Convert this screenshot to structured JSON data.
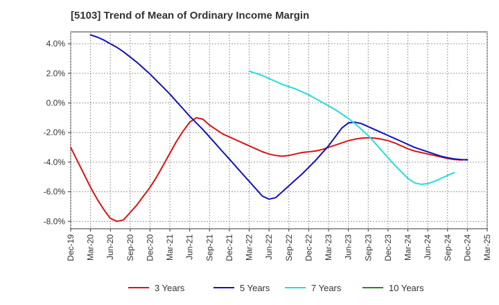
{
  "chart_data": {
    "type": "line",
    "title": "[5103]  Trend of Mean of Ordinary Income Margin",
    "xlabel": "",
    "ylabel": "",
    "x_ticks": [
      "Dec-19",
      "Mar-20",
      "Jun-20",
      "Sep-20",
      "Dec-20",
      "Mar-21",
      "Jun-21",
      "Sep-21",
      "Dec-21",
      "Mar-22",
      "Jun-22",
      "Sep-22",
      "Dec-22",
      "Mar-23",
      "Jun-23",
      "Sep-23",
      "Dec-23",
      "Mar-24",
      "Jun-24",
      "Sep-24",
      "Dec-24",
      "Mar-25"
    ],
    "y_ticks": [
      4.0,
      2.0,
      0.0,
      -2.0,
      -4.0,
      -6.0,
      -8.0
    ],
    "y_tick_labels": [
      "4.0%",
      "2.0%",
      "0.0%",
      "-2.0%",
      "-4.0%",
      "-6.0%",
      "-8.0%"
    ],
    "ylim": [
      -8.5,
      4.8
    ],
    "grid": true,
    "legend_position": "bottom",
    "series": [
      {
        "name": "3 Years",
        "color": "#dd1111",
        "points": [
          [
            "Dec-19",
            -3.0
          ],
          [
            "Jan-20",
            -3.9
          ],
          [
            "Feb-20",
            -4.8
          ],
          [
            "Mar-20",
            -5.7
          ],
          [
            "Apr-20",
            -6.5
          ],
          [
            "May-20",
            -7.2
          ],
          [
            "Jun-20",
            -7.8
          ],
          [
            "Jul-20",
            -8.0
          ],
          [
            "Aug-20",
            -7.9
          ],
          [
            "Sep-20",
            -7.4
          ],
          [
            "Oct-20",
            -6.9
          ],
          [
            "Nov-20",
            -6.3
          ],
          [
            "Dec-20",
            -5.7
          ],
          [
            "Jan-21",
            -5.0
          ],
          [
            "Feb-21",
            -4.2
          ],
          [
            "Mar-21",
            -3.4
          ],
          [
            "Apr-21",
            -2.6
          ],
          [
            "May-21",
            -1.9
          ],
          [
            "Jun-21",
            -1.3
          ],
          [
            "Jul-21",
            -1.0
          ],
          [
            "Aug-21",
            -1.1
          ],
          [
            "Sep-21",
            -1.5
          ],
          [
            "Oct-21",
            -1.8
          ],
          [
            "Nov-21",
            -2.1
          ],
          [
            "Dec-21",
            -2.3
          ],
          [
            "Jan-22",
            -2.5
          ],
          [
            "Feb-22",
            -2.7
          ],
          [
            "Mar-22",
            -2.9
          ],
          [
            "Apr-22",
            -3.1
          ],
          [
            "May-22",
            -3.3
          ],
          [
            "Jun-22",
            -3.45
          ],
          [
            "Jul-22",
            -3.55
          ],
          [
            "Aug-22",
            -3.6
          ],
          [
            "Sep-22",
            -3.55
          ],
          [
            "Oct-22",
            -3.45
          ],
          [
            "Nov-22",
            -3.35
          ],
          [
            "Dec-22",
            -3.3
          ],
          [
            "Jan-23",
            -3.25
          ],
          [
            "Feb-23",
            -3.15
          ],
          [
            "Mar-23",
            -3.0
          ],
          [
            "Apr-23",
            -2.85
          ],
          [
            "May-23",
            -2.7
          ],
          [
            "Jun-23",
            -2.55
          ],
          [
            "Jul-23",
            -2.45
          ],
          [
            "Aug-23",
            -2.38
          ],
          [
            "Sep-23",
            -2.35
          ],
          [
            "Oct-23",
            -2.38
          ],
          [
            "Nov-23",
            -2.45
          ],
          [
            "Dec-23",
            -2.55
          ],
          [
            "Jan-24",
            -2.7
          ],
          [
            "Feb-24",
            -2.9
          ],
          [
            "Mar-24",
            -3.1
          ],
          [
            "Apr-24",
            -3.25
          ],
          [
            "May-24",
            -3.35
          ],
          [
            "Jun-24",
            -3.45
          ],
          [
            "Jul-24",
            -3.55
          ],
          [
            "Aug-24",
            -3.65
          ],
          [
            "Sep-24",
            -3.75
          ],
          [
            "Oct-24",
            -3.82
          ],
          [
            "Nov-24",
            -3.85
          ],
          [
            "Dec-24",
            -3.82
          ]
        ]
      },
      {
        "name": "5 Years",
        "color": "#1111bb",
        "points": [
          [
            "Mar-20",
            4.6
          ],
          [
            "Apr-20",
            4.45
          ],
          [
            "May-20",
            4.25
          ],
          [
            "Jun-20",
            4.0
          ],
          [
            "Jul-20",
            3.75
          ],
          [
            "Aug-20",
            3.45
          ],
          [
            "Sep-20",
            3.1
          ],
          [
            "Oct-20",
            2.75
          ],
          [
            "Nov-20",
            2.35
          ],
          [
            "Dec-20",
            1.95
          ],
          [
            "Jan-21",
            1.5
          ],
          [
            "Feb-21",
            1.05
          ],
          [
            "Mar-21",
            0.6
          ],
          [
            "Apr-21",
            0.1
          ],
          [
            "May-21",
            -0.4
          ],
          [
            "Jun-21",
            -0.9
          ],
          [
            "Jul-21",
            -1.35
          ],
          [
            "Aug-21",
            -1.8
          ],
          [
            "Sep-21",
            -2.3
          ],
          [
            "Oct-21",
            -2.8
          ],
          [
            "Nov-21",
            -3.3
          ],
          [
            "Dec-21",
            -3.8
          ],
          [
            "Jan-22",
            -4.3
          ],
          [
            "Feb-22",
            -4.8
          ],
          [
            "Mar-22",
            -5.3
          ],
          [
            "Apr-22",
            -5.8
          ],
          [
            "May-22",
            -6.3
          ],
          [
            "Jun-22",
            -6.5
          ],
          [
            "Jul-22",
            -6.4
          ],
          [
            "Aug-22",
            -6.0
          ],
          [
            "Sep-22",
            -5.6
          ],
          [
            "Oct-22",
            -5.2
          ],
          [
            "Nov-22",
            -4.8
          ],
          [
            "Dec-22",
            -4.35
          ],
          [
            "Jan-23",
            -3.9
          ],
          [
            "Feb-23",
            -3.4
          ],
          [
            "Mar-23",
            -2.9
          ],
          [
            "Apr-23",
            -2.3
          ],
          [
            "May-23",
            -1.7
          ],
          [
            "Jun-23",
            -1.35
          ],
          [
            "Jul-23",
            -1.3
          ],
          [
            "Aug-23",
            -1.4
          ],
          [
            "Sep-23",
            -1.6
          ],
          [
            "Oct-23",
            -1.8
          ],
          [
            "Nov-23",
            -2.0
          ],
          [
            "Dec-23",
            -2.2
          ],
          [
            "Jan-24",
            -2.4
          ],
          [
            "Feb-24",
            -2.6
          ],
          [
            "Mar-24",
            -2.8
          ],
          [
            "Apr-24",
            -3.0
          ],
          [
            "May-24",
            -3.15
          ],
          [
            "Jun-24",
            -3.3
          ],
          [
            "Jul-24",
            -3.45
          ],
          [
            "Aug-24",
            -3.6
          ],
          [
            "Sep-24",
            -3.7
          ],
          [
            "Oct-24",
            -3.78
          ],
          [
            "Nov-24",
            -3.82
          ],
          [
            "Dec-24",
            -3.85
          ]
        ]
      },
      {
        "name": "7 Years",
        "color": "#22dddd",
        "points": [
          [
            "Mar-22",
            2.15
          ],
          [
            "Apr-22",
            2.0
          ],
          [
            "May-22",
            1.85
          ],
          [
            "Jun-22",
            1.65
          ],
          [
            "Jul-22",
            1.45
          ],
          [
            "Aug-22",
            1.25
          ],
          [
            "Sep-22",
            1.1
          ],
          [
            "Oct-22",
            0.95
          ],
          [
            "Nov-22",
            0.75
          ],
          [
            "Dec-22",
            0.55
          ],
          [
            "Jan-23",
            0.3
          ],
          [
            "Feb-23",
            0.05
          ],
          [
            "Mar-23",
            -0.2
          ],
          [
            "Apr-23",
            -0.45
          ],
          [
            "May-23",
            -0.75
          ],
          [
            "Jun-23",
            -1.05
          ],
          [
            "Jul-23",
            -1.4
          ],
          [
            "Aug-23",
            -1.8
          ],
          [
            "Sep-23",
            -2.2
          ],
          [
            "Oct-23",
            -2.7
          ],
          [
            "Nov-23",
            -3.2
          ],
          [
            "Dec-23",
            -3.7
          ],
          [
            "Jan-24",
            -4.2
          ],
          [
            "Feb-24",
            -4.65
          ],
          [
            "Mar-24",
            -5.1
          ],
          [
            "Apr-24",
            -5.4
          ],
          [
            "May-24",
            -5.5
          ],
          [
            "Jun-24",
            -5.45
          ],
          [
            "Jul-24",
            -5.3
          ],
          [
            "Aug-24",
            -5.1
          ],
          [
            "Sep-24",
            -4.9
          ],
          [
            "Oct-24",
            -4.7
          ]
        ]
      },
      {
        "name": "10 Years",
        "color": "#228822",
        "points": []
      }
    ]
  }
}
